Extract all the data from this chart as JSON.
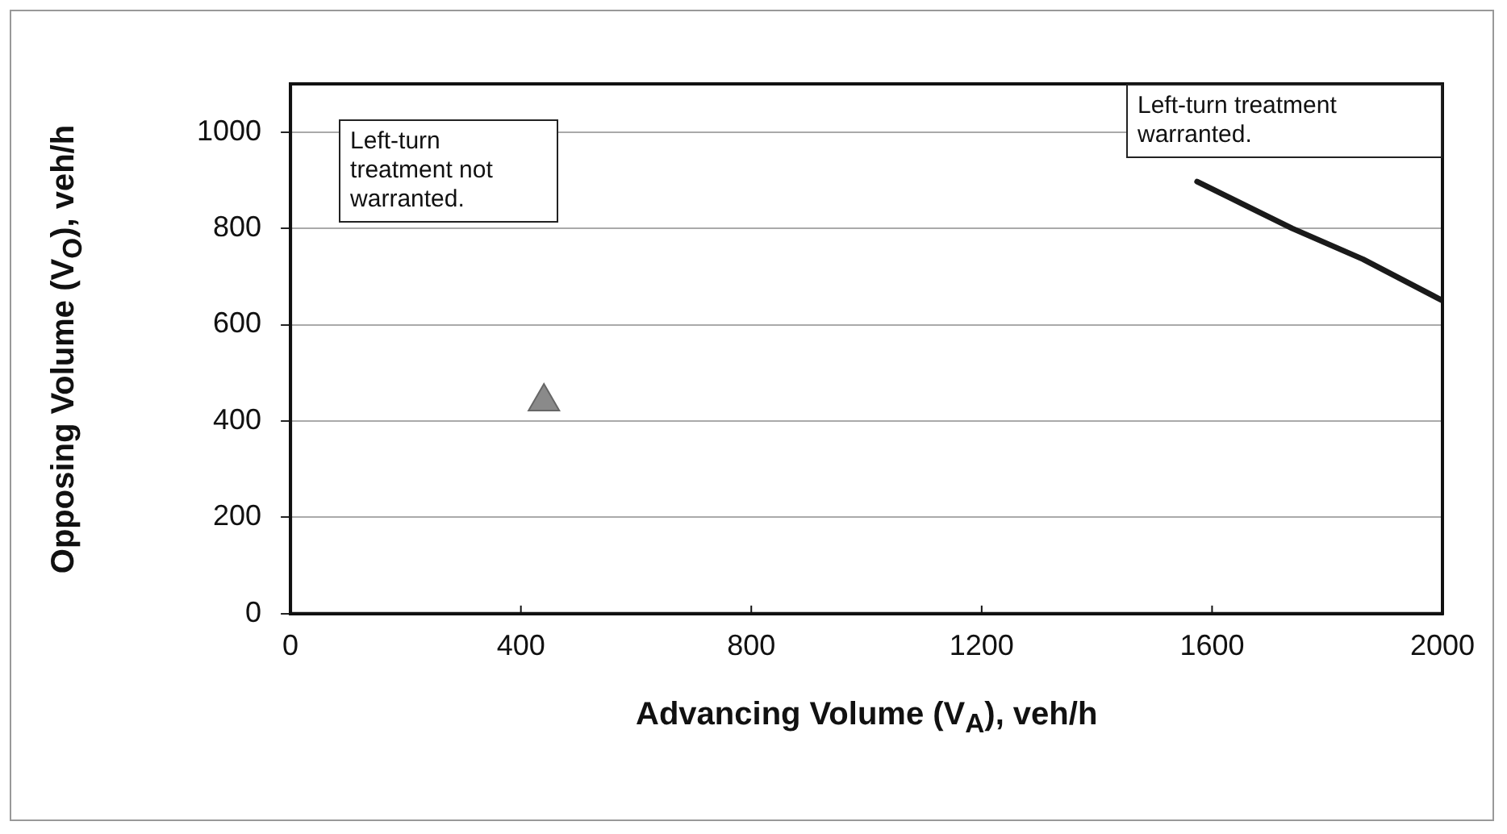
{
  "chart_data": {
    "type": "line",
    "xlabel": "Advancing Volume (V$_{A}$), veh/h",
    "ylabel": "Opposing Volume (V$_{O}$), veh/h",
    "xlim": [
      0,
      2000
    ],
    "xticks": [
      0,
      400,
      800,
      1200,
      1600,
      2000
    ],
    "ylim": [
      0,
      1100
    ],
    "yticks": [
      0,
      200,
      400,
      600,
      800,
      1000
    ],
    "grid": "y",
    "legend": false,
    "series": [
      {
        "type": "line",
        "color": "#1a1a1a",
        "marker": "none",
        "line_style": "solid",
        "x": [
          1574,
          1739,
          1862,
          2000
        ],
        "values": [
          897,
          800,
          736,
          650
        ]
      },
      {
        "type": "scatter",
        "color": "#8a8a8a",
        "marker": "triangle",
        "x": [
          440
        ],
        "values": [
          440
        ]
      }
    ],
    "annotations": [
      "Left-turn treatment not warranted.",
      "Left-turn treatment warranted."
    ]
  }
}
